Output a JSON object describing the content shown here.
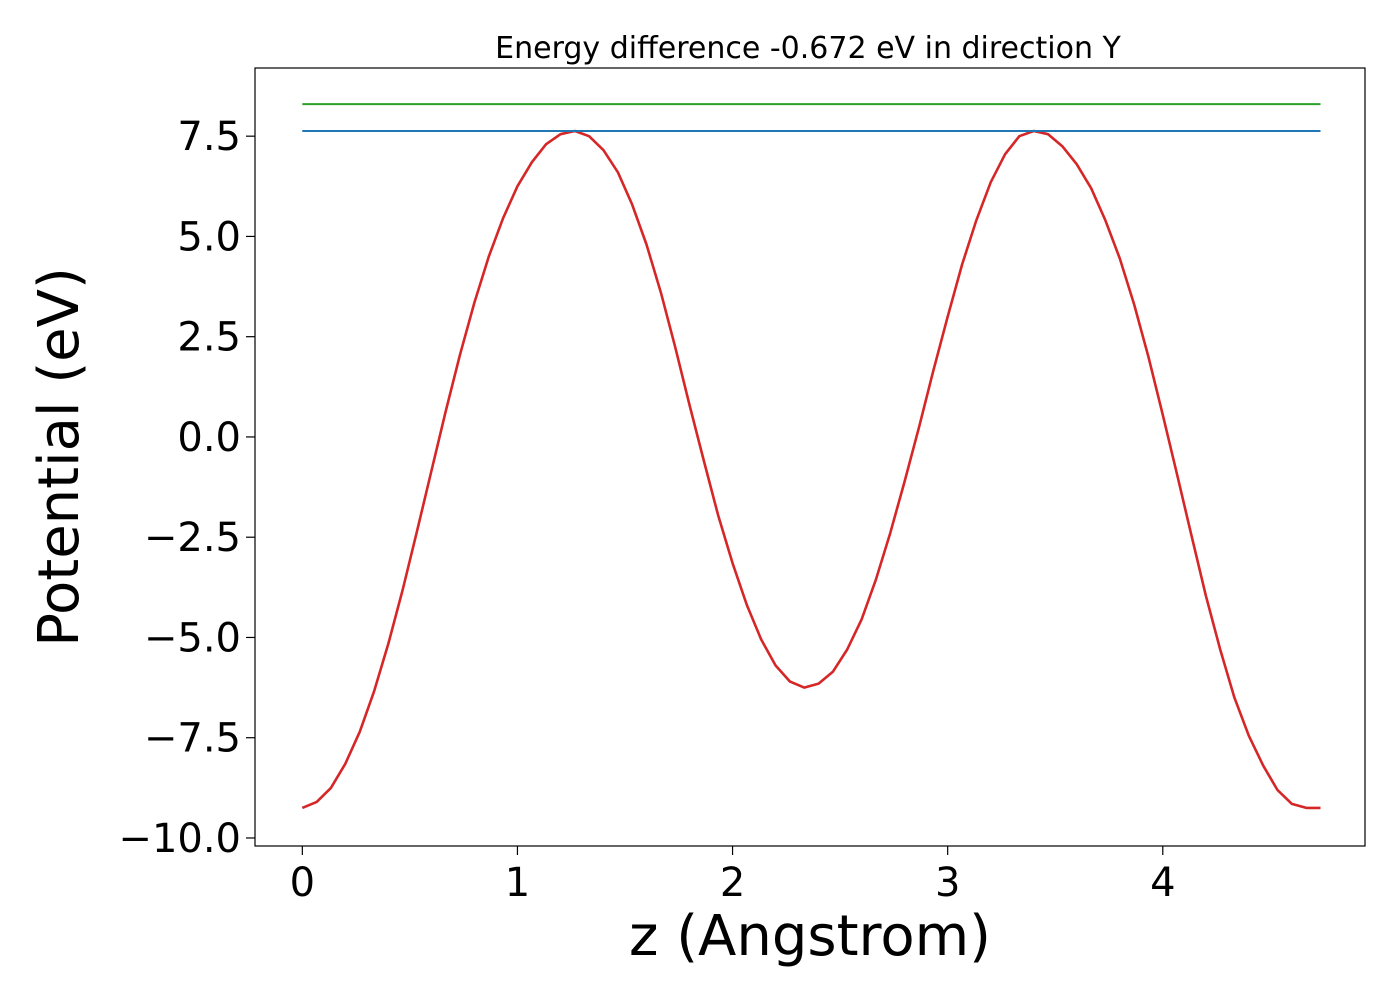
{
  "chart_data": {
    "type": "line",
    "title": "Energy difference -0.672 eV in direction Y",
    "xlabel": "z (Angstrom)",
    "ylabel": "Potential (eV)",
    "xlim": [
      -0.22,
      4.94
    ],
    "ylim": [
      -10.2,
      9.2
    ],
    "x_ticks": [
      0,
      1,
      2,
      3,
      4
    ],
    "x_tick_labels": [
      "0",
      "1",
      "2",
      "3",
      "4"
    ],
    "y_ticks": [
      -10,
      -7.5,
      -5,
      -2.5,
      0,
      2.5,
      5,
      7.5
    ],
    "y_tick_labels": [
      "−10.0",
      "−7.5",
      "−5.0",
      "−2.5",
      "0.0",
      "2.5",
      "5.0",
      "7.5"
    ],
    "grid": false,
    "legend": "none",
    "series": [
      {
        "color": "#d62728",
        "x": [
          0.0,
          0.067,
          0.133,
          0.2,
          0.267,
          0.333,
          0.4,
          0.467,
          0.533,
          0.6,
          0.667,
          0.733,
          0.8,
          0.867,
          0.933,
          1.0,
          1.067,
          1.133,
          1.2,
          1.267,
          1.333,
          1.4,
          1.467,
          1.533,
          1.6,
          1.667,
          1.733,
          1.8,
          1.867,
          1.933,
          2.0,
          2.067,
          2.133,
          2.2,
          2.267,
          2.333,
          2.4,
          2.467,
          2.533,
          2.6,
          2.667,
          2.733,
          2.8,
          2.867,
          2.933,
          3.0,
          3.067,
          3.133,
          3.2,
          3.267,
          3.333,
          3.4,
          3.467,
          3.533,
          3.6,
          3.667,
          3.733,
          3.8,
          3.867,
          3.933,
          4.0,
          4.067,
          4.133,
          4.2,
          4.267,
          4.333,
          4.4,
          4.467,
          4.533,
          4.6,
          4.667,
          4.733
        ],
        "y": [
          -9.25,
          -9.1,
          -8.75,
          -8.15,
          -7.35,
          -6.35,
          -5.15,
          -3.8,
          -2.35,
          -0.85,
          0.65,
          2.05,
          3.35,
          4.5,
          5.45,
          6.25,
          6.85,
          7.3,
          7.55,
          7.63,
          7.5,
          7.15,
          6.6,
          5.8,
          4.8,
          3.6,
          2.25,
          0.8,
          -0.6,
          -1.95,
          -3.15,
          -4.2,
          -5.05,
          -5.7,
          -6.1,
          -6.25,
          -6.15,
          -5.85,
          -5.3,
          -4.55,
          -3.55,
          -2.4,
          -1.1,
          0.25,
          1.65,
          3.0,
          4.3,
          5.4,
          6.35,
          7.05,
          7.5,
          7.63,
          7.55,
          7.25,
          6.8,
          6.2,
          5.4,
          4.45,
          3.3,
          2.0,
          0.55,
          -0.95,
          -2.45,
          -3.95,
          -5.3,
          -6.5,
          -7.45,
          -8.2,
          -8.8,
          -9.15,
          -9.25,
          -9.25
        ]
      },
      {
        "color": "#1f77b4",
        "x": [
          0.0,
          4.733
        ],
        "y": [
          7.63,
          7.63
        ]
      },
      {
        "color": "#2ca02c",
        "x": [
          0.0,
          4.733
        ],
        "y": [
          8.3,
          8.3
        ]
      }
    ]
  }
}
